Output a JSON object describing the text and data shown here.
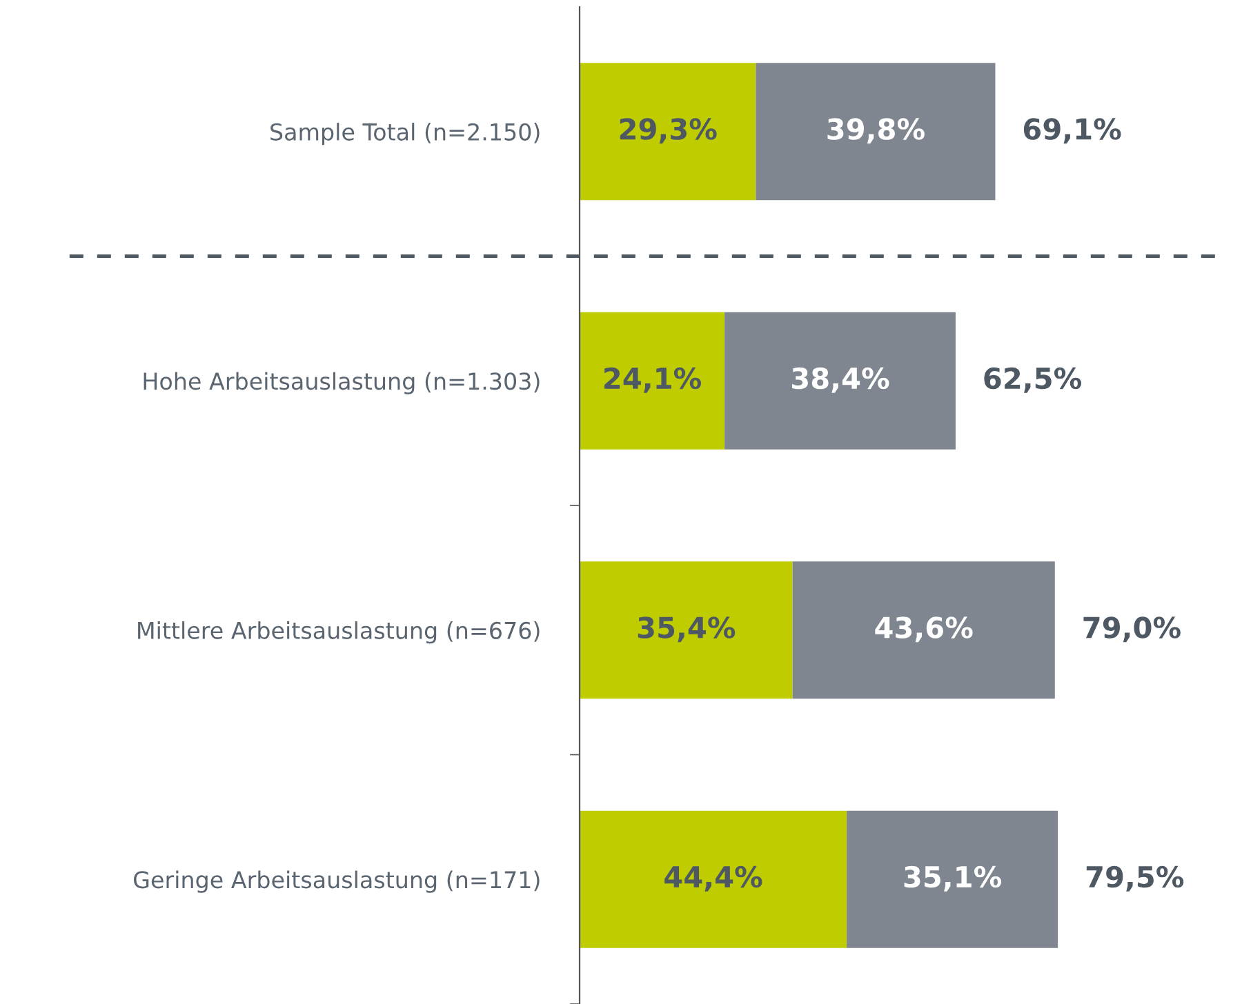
{
  "chart_data": {
    "type": "bar",
    "orientation": "horizontal",
    "stacked": true,
    "data_labels": true,
    "grid": false,
    "legend": false,
    "categories": [
      "Sample Total (n=2.150)",
      "Hohe Arbeitsauslastung (n=1.303)",
      "Mittlere Arbeitsauslastung (n=676)",
      "Geringe Arbeitsauslastung (n=171)"
    ],
    "series": [
      {
        "color": "#bfcd00",
        "values": [
          29.3,
          24.1,
          35.4,
          44.4
        ],
        "value_labels": [
          "29,3%",
          "24,1%",
          "35,4%",
          "44,4%"
        ]
      },
      {
        "color": "#7f868f",
        "values": [
          39.8,
          38.4,
          43.6,
          35.1
        ],
        "value_labels": [
          "39,8%",
          "38,4%",
          "43,6%",
          "35,1%"
        ]
      }
    ],
    "totals": [
      "69,1%",
      "62,5%",
      "79,0%",
      "79,5%"
    ]
  }
}
